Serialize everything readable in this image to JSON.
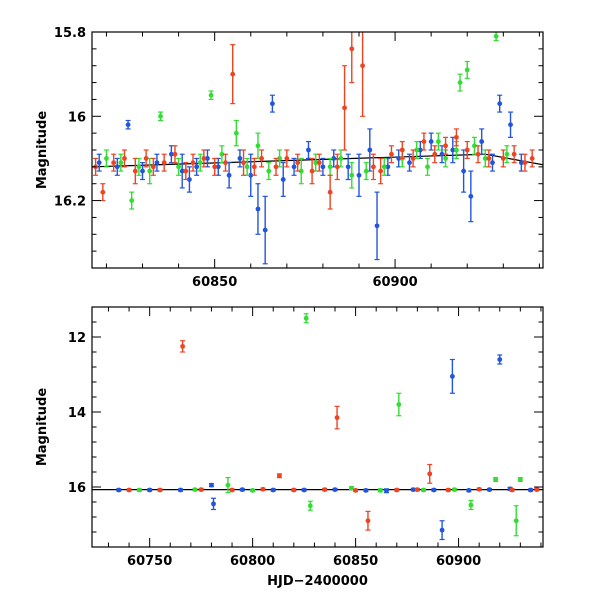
{
  "chart_data": [
    {
      "type": "scatter",
      "title": "",
      "xlabel": "",
      "ylabel": "Magnitude",
      "xlim": [
        60816,
        60941
      ],
      "ylim": [
        16.36,
        15.8
      ],
      "y_inverted": true,
      "x_ticks": [
        60850,
        60900
      ],
      "y_ticks": [
        15.8,
        16,
        16.2
      ],
      "y_tick_labels": [
        "15.8",
        "16",
        "16.2"
      ],
      "grid": false,
      "legend": "none",
      "model_line": {
        "color": "#000000",
        "x": [
          60816,
          60925,
          60941
        ],
        "y": [
          16.12,
          16.09,
          16.115
        ]
      },
      "series": [
        {
          "color": "#2255dd",
          "points": [
            [
              60818,
              16.11,
              0.02
            ],
            [
              60823,
              16.12,
              0.02
            ],
            [
              60826,
              16.02,
              0.01
            ],
            [
              60830,
              16.13,
              0.02
            ],
            [
              60834,
              16.11,
              0.02
            ],
            [
              60838,
              16.09,
              0.02
            ],
            [
              60841,
              16.13,
              0.04
            ],
            [
              60843,
              16.15,
              0.03
            ],
            [
              60845,
              16.12,
              0.02
            ],
            [
              60848,
              16.1,
              0.02
            ],
            [
              60851,
              16.12,
              0.02
            ],
            [
              60854,
              16.14,
              0.03
            ],
            [
              60857,
              16.1,
              0.02
            ],
            [
              60860,
              16.14,
              0.05
            ],
            [
              60862,
              16.22,
              0.06
            ],
            [
              60864,
              16.27,
              0.08
            ],
            [
              60866,
              15.97,
              0.02
            ],
            [
              60869,
              16.15,
              0.04
            ],
            [
              60872,
              16.12,
              0.02
            ],
            [
              60876,
              16.08,
              0.02
            ],
            [
              60880,
              16.12,
              0.02
            ],
            [
              60883,
              16.1,
              0.02
            ],
            [
              60887,
              16.12,
              0.03
            ],
            [
              60890,
              16.14,
              0.05
            ],
            [
              60893,
              16.08,
              0.05
            ],
            [
              60895,
              16.26,
              0.08
            ],
            [
              60898,
              16.12,
              0.02
            ],
            [
              60901,
              16.1,
              0.02
            ],
            [
              60904,
              16.11,
              0.02
            ],
            [
              60907,
              16.08,
              0.02
            ],
            [
              60910,
              16.06,
              0.02
            ],
            [
              60913,
              16.09,
              0.02
            ],
            [
              60916,
              16.08,
              0.03
            ],
            [
              60919,
              16.13,
              0.05
            ],
            [
              60921,
              16.19,
              0.06
            ],
            [
              60924,
              16.06,
              0.03
            ],
            [
              60927,
              16.11,
              0.02
            ],
            [
              60929,
              15.97,
              0.02
            ],
            [
              60932,
              16.02,
              0.03
            ],
            [
              60935,
              16.11,
              0.02
            ]
          ]
        },
        {
          "color": "#33dd33",
          "points": [
            [
              60820,
              16.1,
              0.02
            ],
            [
              60824,
              16.11,
              0.02
            ],
            [
              60827,
              16.2,
              0.02
            ],
            [
              60829,
              16.12,
              0.02
            ],
            [
              60832,
              16.13,
              0.03
            ],
            [
              60835,
              16.0,
              0.01
            ],
            [
              60840,
              16.12,
              0.02
            ],
            [
              60846,
              16.11,
              0.02
            ],
            [
              60849,
              15.95,
              0.01
            ],
            [
              60852,
              16.09,
              0.02
            ],
            [
              60856,
              16.04,
              0.03
            ],
            [
              60859,
              16.12,
              0.02
            ],
            [
              60862,
              16.07,
              0.03
            ],
            [
              60865,
              16.13,
              0.02
            ],
            [
              60868,
              16.1,
              0.02
            ],
            [
              60874,
              16.13,
              0.03
            ],
            [
              60878,
              16.11,
              0.02
            ],
            [
              60882,
              16.12,
              0.02
            ],
            [
              60885,
              16.1,
              0.02
            ],
            [
              60888,
              16.14,
              0.03
            ],
            [
              60892,
              16.13,
              0.02
            ],
            [
              60897,
              16.12,
              0.02
            ],
            [
              60902,
              16.1,
              0.02
            ],
            [
              60906,
              16.08,
              0.02
            ],
            [
              60909,
              16.12,
              0.02
            ],
            [
              60912,
              16.06,
              0.02
            ],
            [
              60914,
              16.1,
              0.02
            ],
            [
              60917,
              16.08,
              0.02
            ],
            [
              60918,
              15.92,
              0.02
            ],
            [
              60920,
              15.89,
              0.02
            ],
            [
              60922,
              16.07,
              0.02
            ],
            [
              60925,
              16.1,
              0.02
            ],
            [
              60928,
              15.81,
              0.01
            ],
            [
              60931,
              16.09,
              0.02
            ]
          ]
        },
        {
          "color": "#ee4422",
          "points": [
            [
              60817,
              16.12,
              0.02
            ],
            [
              60819,
              16.18,
              0.02
            ],
            [
              60822,
              16.11,
              0.02
            ],
            [
              60825,
              16.1,
              0.02
            ],
            [
              60828,
              16.13,
              0.03
            ],
            [
              60831,
              16.1,
              0.02
            ],
            [
              60833,
              16.12,
              0.02
            ],
            [
              60836,
              16.11,
              0.02
            ],
            [
              60839,
              16.09,
              0.02
            ],
            [
              60842,
              16.13,
              0.02
            ],
            [
              60844,
              16.11,
              0.02
            ],
            [
              60847,
              16.1,
              0.02
            ],
            [
              60850,
              16.12,
              0.02
            ],
            [
              60853,
              16.11,
              0.02
            ],
            [
              60855,
              15.9,
              0.07
            ],
            [
              60858,
              16.11,
              0.03
            ],
            [
              60861,
              16.12,
              0.02
            ],
            [
              60863,
              16.1,
              0.02
            ],
            [
              60867,
              16.12,
              0.02
            ],
            [
              60870,
              16.1,
              0.02
            ],
            [
              60873,
              16.11,
              0.02
            ],
            [
              60877,
              16.13,
              0.03
            ],
            [
              60879,
              16.11,
              0.02
            ],
            [
              60882,
              16.18,
              0.04
            ],
            [
              60884,
              16.12,
              0.03
            ],
            [
              60886,
              15.98,
              0.1
            ],
            [
              60888,
              15.84,
              0.08
            ],
            [
              60891,
              15.88,
              0.12
            ],
            [
              60894,
              16.12,
              0.03
            ],
            [
              60896,
              16.13,
              0.03
            ],
            [
              60899,
              16.09,
              0.02
            ],
            [
              60902,
              16.08,
              0.02
            ],
            [
              60905,
              16.1,
              0.02
            ],
            [
              60908,
              16.06,
              0.02
            ],
            [
              60911,
              16.09,
              0.02
            ],
            [
              60914,
              16.07,
              0.02
            ],
            [
              60917,
              16.05,
              0.02
            ],
            [
              60920,
              16.08,
              0.02
            ],
            [
              60923,
              16.09,
              0.02
            ],
            [
              60926,
              16.1,
              0.02
            ],
            [
              60930,
              16.1,
              0.02
            ],
            [
              60933,
              16.09,
              0.02
            ],
            [
              60936,
              16.11,
              0.02
            ],
            [
              60938,
              16.1,
              0.02
            ]
          ]
        }
      ]
    },
    {
      "type": "scatter",
      "title": "",
      "xlabel": "HJD−2400000",
      "ylabel": "Magnitude",
      "xlim": [
        60722,
        60941
      ],
      "ylim": [
        17.6,
        11.2
      ],
      "y_inverted": true,
      "x_ticks": [
        60750,
        60800,
        60850,
        60900
      ],
      "y_ticks": [
        12,
        14,
        16
      ],
      "y_tick_labels": [
        "12",
        "14",
        "16"
      ],
      "grid": false,
      "legend": "none",
      "model_line": {
        "color": "#000000",
        "x": [
          60722,
          60941
        ],
        "y": [
          16.07,
          16.07
        ]
      },
      "series": [
        {
          "color": "#2255dd",
          "points": [
            [
              60735,
              16.08,
              0.03
            ],
            [
              60750,
              16.08,
              0.03
            ],
            [
              60765,
              16.08,
              0.03
            ],
            [
              60780,
              15.95,
              0.04
            ],
            [
              60781,
              16.45,
              0.15
            ],
            [
              60795,
              16.07,
              0.03
            ],
            [
              60810,
              16.08,
              0.03
            ],
            [
              60825,
              16.08,
              0.03
            ],
            [
              60840,
              16.07,
              0.03
            ],
            [
              60855,
              16.09,
              0.03
            ],
            [
              60865,
              16.1,
              0.05
            ],
            [
              60878,
              16.07,
              0.03
            ],
            [
              60888,
              16.08,
              0.03
            ],
            [
              60892,
              17.15,
              0.25
            ],
            [
              60897,
              13.05,
              0.45
            ],
            [
              60905,
              16.09,
              0.03
            ],
            [
              60915,
              16.07,
              0.03
            ],
            [
              60920,
              12.6,
              0.12
            ],
            [
              60925,
              16.05,
              0.04
            ],
            [
              60935,
              16.08,
              0.03
            ]
          ]
        },
        {
          "color": "#33dd33",
          "points": [
            [
              60745,
              16.08,
              0.03
            ],
            [
              60772,
              16.07,
              0.03
            ],
            [
              60788,
              15.95,
              0.2
            ],
            [
              60800,
              16.09,
              0.03
            ],
            [
              60826,
              11.5,
              0.12
            ],
            [
              60828,
              16.5,
              0.12
            ],
            [
              60848,
              16.03,
              0.04
            ],
            [
              60862,
              16.09,
              0.04
            ],
            [
              60871,
              13.8,
              0.3
            ],
            [
              60883,
              16.08,
              0.03
            ],
            [
              60898,
              16.07,
              0.03
            ],
            [
              60906,
              16.48,
              0.12
            ],
            [
              60918,
              15.8,
              0.05
            ],
            [
              60930,
              15.8,
              0.05
            ],
            [
              60928,
              16.9,
              0.4
            ]
          ]
        },
        {
          "color": "#ee4422",
          "points": [
            [
              60740,
              16.08,
              0.03
            ],
            [
              60755,
              16.08,
              0.03
            ],
            [
              60766,
              12.25,
              0.15
            ],
            [
              60775,
              16.07,
              0.03
            ],
            [
              60790,
              16.08,
              0.03
            ],
            [
              60805,
              16.06,
              0.03
            ],
            [
              60813,
              15.7,
              0.05
            ],
            [
              60820,
              16.08,
              0.03
            ],
            [
              60835,
              16.07,
              0.03
            ],
            [
              60841,
              14.15,
              0.3
            ],
            [
              60850,
              16.09,
              0.03
            ],
            [
              60856,
              16.9,
              0.25
            ],
            [
              60870,
              16.08,
              0.03
            ],
            [
              60880,
              16.07,
              0.03
            ],
            [
              60886,
              15.65,
              0.25
            ],
            [
              60895,
              16.08,
              0.03
            ],
            [
              60910,
              16.06,
              0.03
            ],
            [
              60926,
              16.08,
              0.03
            ],
            [
              60938,
              16.07,
              0.03
            ]
          ]
        }
      ]
    }
  ]
}
